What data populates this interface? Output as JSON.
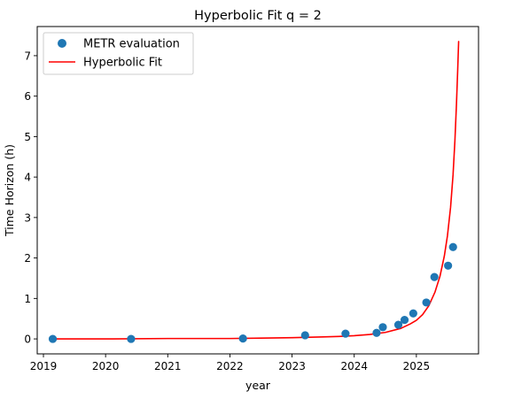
{
  "chart_data": {
    "type": "scatter",
    "title": "Hyperbolic Fit q = 2",
    "xlabel": "year",
    "ylabel": "Time Horizon (h)",
    "xlim": [
      2018.9,
      2026.0
    ],
    "ylim": [
      -0.37,
      7.72
    ],
    "x_ticks": [
      2019,
      2020,
      2021,
      2022,
      2023,
      2024,
      2025
    ],
    "y_ticks": [
      0,
      1,
      2,
      3,
      4,
      5,
      6,
      7
    ],
    "legend_position": "upper-left",
    "grid": false,
    "series": [
      {
        "name": "METR evaluation",
        "kind": "scatter",
        "color": "#1f77b4",
        "points": [
          {
            "x": 2019.15,
            "y": 0.0
          },
          {
            "x": 2020.41,
            "y": 0.0
          },
          {
            "x": 2022.21,
            "y": 0.01
          },
          {
            "x": 2023.21,
            "y": 0.09
          },
          {
            "x": 2023.86,
            "y": 0.13
          },
          {
            "x": 2024.36,
            "y": 0.15
          },
          {
            "x": 2024.46,
            "y": 0.29
          },
          {
            "x": 2024.71,
            "y": 0.35
          },
          {
            "x": 2024.81,
            "y": 0.47
          },
          {
            "x": 2024.95,
            "y": 0.63
          },
          {
            "x": 2025.16,
            "y": 0.9
          },
          {
            "x": 2025.29,
            "y": 1.53
          },
          {
            "x": 2025.51,
            "y": 1.81
          },
          {
            "x": 2025.59,
            "y": 2.27
          }
        ]
      },
      {
        "name": "Hyperbolic Fit",
        "kind": "line",
        "color": "#ff0000",
        "points": [
          {
            "x": 2019.15,
            "y": 0.0
          },
          {
            "x": 2020.0,
            "y": 0.0
          },
          {
            "x": 2021.0,
            "y": 0.01
          },
          {
            "x": 2022.0,
            "y": 0.01
          },
          {
            "x": 2022.5,
            "y": 0.02
          },
          {
            "x": 2023.0,
            "y": 0.03
          },
          {
            "x": 2023.5,
            "y": 0.05
          },
          {
            "x": 2023.75,
            "y": 0.06
          },
          {
            "x": 2024.0,
            "y": 0.08
          },
          {
            "x": 2024.25,
            "y": 0.11
          },
          {
            "x": 2024.5,
            "y": 0.16
          },
          {
            "x": 2024.75,
            "y": 0.26
          },
          {
            "x": 2024.9,
            "y": 0.37
          },
          {
            "x": 2025.0,
            "y": 0.46
          },
          {
            "x": 2025.1,
            "y": 0.6
          },
          {
            "x": 2025.2,
            "y": 0.82
          },
          {
            "x": 2025.3,
            "y": 1.16
          },
          {
            "x": 2025.38,
            "y": 1.55
          },
          {
            "x": 2025.45,
            "y": 2.05
          },
          {
            "x": 2025.5,
            "y": 2.55
          },
          {
            "x": 2025.55,
            "y": 3.25
          },
          {
            "x": 2025.59,
            "y": 4.05
          },
          {
            "x": 2025.62,
            "y": 4.9
          },
          {
            "x": 2025.645,
            "y": 5.8
          },
          {
            "x": 2025.665,
            "y": 6.65
          },
          {
            "x": 2025.68,
            "y": 7.35
          }
        ]
      }
    ]
  }
}
